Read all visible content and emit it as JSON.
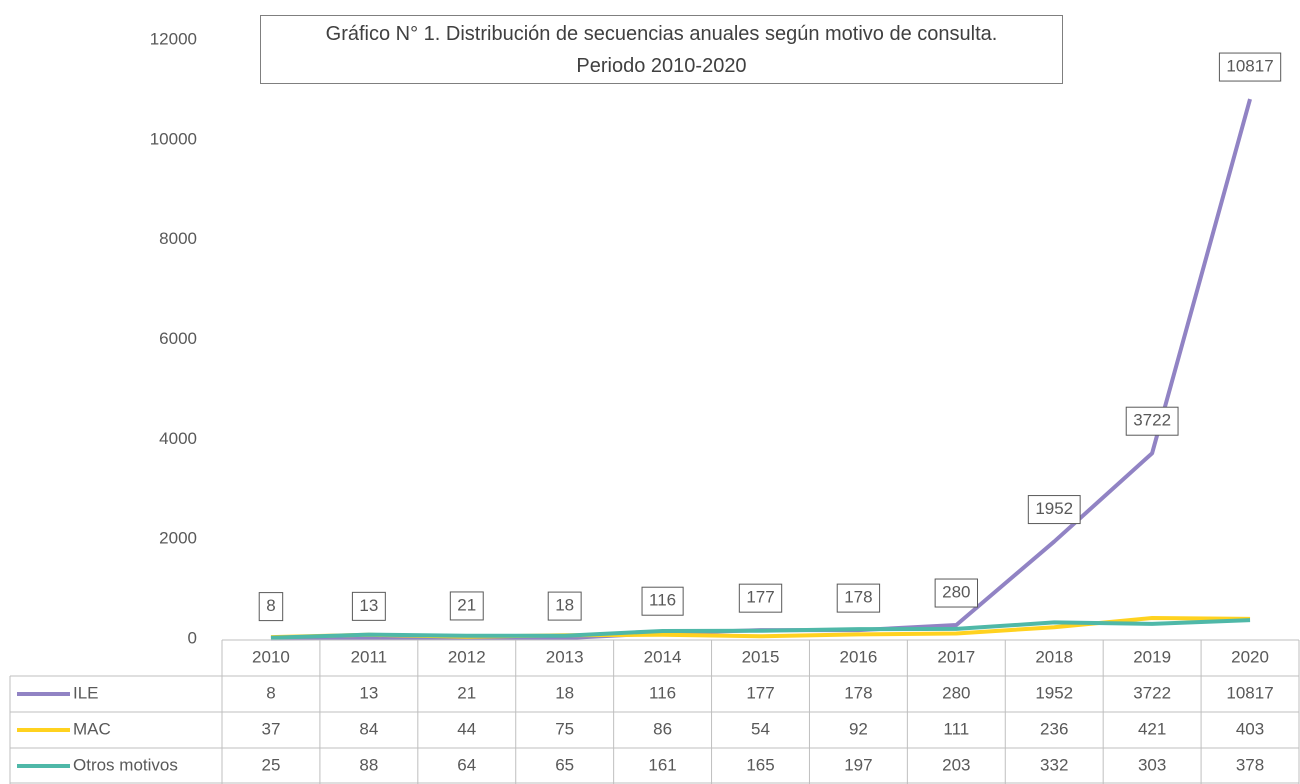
{
  "chart_data": {
    "type": "line",
    "title": "Gráfico N° 1. Distribución de secuencias anuales según motivo de consulta.\nPeriodo 2010-2020",
    "categories": [
      "2010",
      "2011",
      "2012",
      "2013",
      "2014",
      "2015",
      "2016",
      "2017",
      "2018",
      "2019",
      "2020"
    ],
    "series": [
      {
        "name": "ILE",
        "color": "#9183c4",
        "values": [
          8,
          13,
          21,
          18,
          116,
          177,
          178,
          280,
          1952,
          3722,
          10817
        ],
        "data_labels": true
      },
      {
        "name": "MAC",
        "color": "#ffd21f",
        "values": [
          37,
          84,
          44,
          75,
          86,
          54,
          92,
          111,
          236,
          421,
          403
        ],
        "data_labels": false
      },
      {
        "name": "Otros motivos",
        "color": "#4fb8a8",
        "values": [
          25,
          88,
          64,
          65,
          161,
          165,
          197,
          203,
          332,
          303,
          378
        ],
        "data_labels": false
      }
    ],
    "ylim": [
      0,
      12000
    ],
    "yticks": [
      0,
      2000,
      4000,
      6000,
      8000,
      10000,
      12000
    ],
    "grid": false,
    "data_table": true
  }
}
